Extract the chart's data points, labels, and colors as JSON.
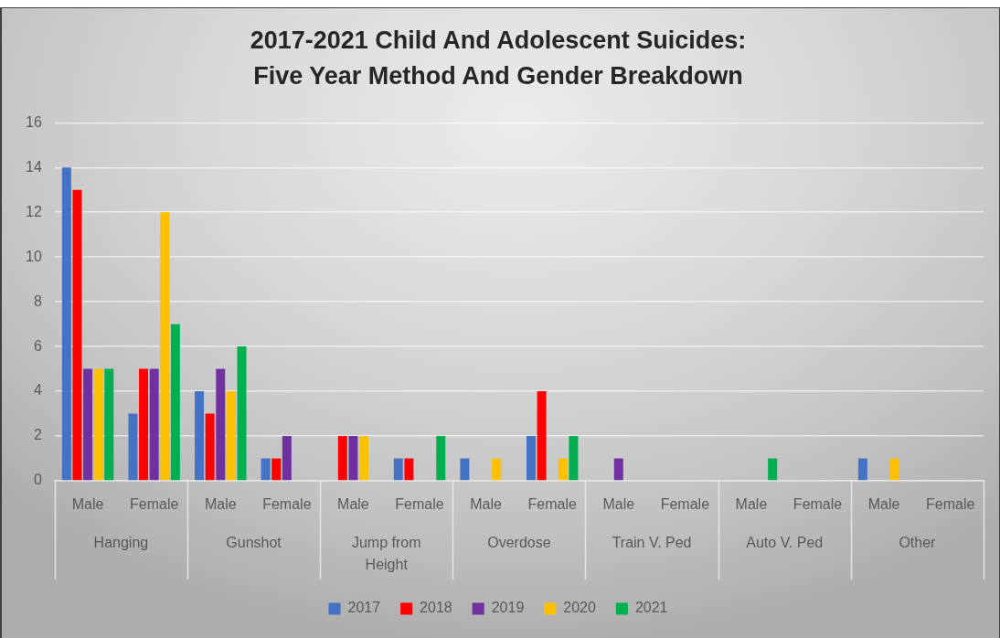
{
  "chart_data": {
    "type": "bar",
    "title": "2017-2021 Child And Adolescent Suicides:\nFive Year Method And Gender Breakdown",
    "categories": [
      "Male",
      "Female",
      "Male",
      "Female",
      "Male",
      "Female",
      "Male",
      "Female",
      "Male",
      "Female",
      "Male",
      "Female",
      "Male",
      "Female"
    ],
    "annotations": [
      "Hanging",
      "Gunshot",
      "Jump from Height",
      "Overdose",
      "Train V. Ped",
      "Auto V. Ped",
      "Other"
    ],
    "series": [
      {
        "name": "2017",
        "color": "#4472c4",
        "values": [
          14,
          3,
          4,
          1,
          null,
          1,
          1,
          2,
          null,
          null,
          null,
          null,
          1,
          null
        ]
      },
      {
        "name": "2018",
        "color": "#ff0000",
        "values": [
          13,
          5,
          3,
          1,
          2,
          1,
          null,
          4,
          null,
          null,
          null,
          null,
          null,
          null
        ]
      },
      {
        "name": "2019",
        "color": "#7030a0",
        "values": [
          5,
          5,
          5,
          2,
          2,
          null,
          null,
          null,
          1,
          null,
          null,
          null,
          null,
          null
        ]
      },
      {
        "name": "2020",
        "color": "#ffc000",
        "values": [
          5,
          12,
          4,
          null,
          2,
          null,
          1,
          1,
          null,
          null,
          null,
          null,
          1,
          null
        ]
      },
      {
        "name": "2021",
        "color": "#00b050",
        "values": [
          5,
          7,
          6,
          null,
          null,
          2,
          null,
          2,
          null,
          null,
          1,
          null,
          null,
          null
        ]
      }
    ],
    "ylim": [
      0,
      16
    ],
    "yticks": [
      0,
      2,
      4,
      6,
      8,
      10,
      12,
      14,
      16
    ],
    "grid": "y",
    "legend": "bottom"
  }
}
